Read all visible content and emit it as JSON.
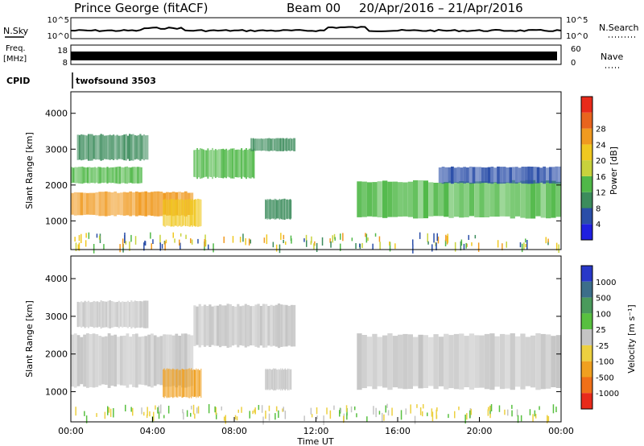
{
  "header": {
    "station": "Prince George (fitACF)",
    "beam": "Beam 00",
    "dates": "20/Apr/2016 – 21/Apr/2016"
  },
  "aux_panels": {
    "nsky_label": "N.Sky",
    "nsky_left_ticks": [
      "10^5",
      "10^0"
    ],
    "nsky_right_ticks": [
      "10^5",
      "10^0"
    ],
    "nsearch_label": "N.Search",
    "freq_label_line1": "Freq.",
    "freq_label_line2": "[MHz]",
    "freq_left_ticks": [
      "18",
      "8"
    ],
    "nave_right_ticks": [
      "60",
      "0"
    ],
    "nave_label": "Nave",
    "cpid_label": "CPID",
    "cpid_text": "twofsound 3503"
  },
  "colorbars": {
    "power": {
      "label": "Power [dB]",
      "ticks": [
        "4",
        "8",
        "12",
        "16",
        "20",
        "24",
        "28"
      ],
      "colors": [
        "#1f1fe0",
        "#2a4ea8",
        "#3c8c5c",
        "#50b848",
        "#c8d23c",
        "#f0c820",
        "#f09a20",
        "#e8641e",
        "#e82a1a"
      ]
    },
    "velocity": {
      "label": "Velocity [m s⁻¹]",
      "ticks": [
        "1000",
        "500",
        "100",
        "25",
        "-25",
        "-100",
        "-500",
        "-1000"
      ],
      "colors": [
        "#2838c8",
        "#3c6e8a",
        "#4a9a5c",
        "#58c040",
        "#c4c4c4",
        "#ecd040",
        "#f0a020",
        "#f07018",
        "#e82a1a"
      ]
    }
  },
  "chart_data": [
    {
      "type": "heatmap",
      "panel": "power",
      "ylabel": "Slant Range [km]",
      "ylim": [
        200,
        4600
      ],
      "y_ticks": [
        "1000",
        "2000",
        "3000",
        "4000"
      ],
      "x_range_hours": [
        0,
        24
      ],
      "grid": false,
      "colorbar_label": "Power [dB]",
      "regions": [
        {
          "t0": 0.0,
          "t1": 6.0,
          "r0": 1150,
          "r1": 1800,
          "power_db": 22
        },
        {
          "t0": 0.0,
          "t1": 3.5,
          "r0": 2050,
          "r1": 2500,
          "power_db": 14
        },
        {
          "t0": 0.3,
          "t1": 3.8,
          "r0": 2700,
          "r1": 3400,
          "power_db": 10
        },
        {
          "t0": 4.5,
          "t1": 6.4,
          "r0": 850,
          "r1": 1600,
          "power_db": 20
        },
        {
          "t0": 6.0,
          "t1": 9.0,
          "r0": 2200,
          "r1": 3000,
          "power_db": 14
        },
        {
          "t0": 8.8,
          "t1": 11.0,
          "r0": 2950,
          "r1": 3300,
          "power_db": 8
        },
        {
          "t0": 9.5,
          "t1": 10.8,
          "r0": 1050,
          "r1": 1600,
          "power_db": 8
        },
        {
          "t0": 14.0,
          "t1": 24.0,
          "r0": 1100,
          "r1": 2100,
          "power_db": 14
        },
        {
          "t0": 18.0,
          "t1": 24.0,
          "r0": 2050,
          "r1": 2500,
          "power_db": 6
        }
      ]
    },
    {
      "type": "heatmap",
      "panel": "velocity",
      "ylabel": "Slant Range [km]",
      "xlabel": "Time UT",
      "ylim": [
        200,
        4600
      ],
      "y_ticks": [
        "1000",
        "2000",
        "3000",
        "4000"
      ],
      "x_ticks": [
        "00:00",
        "04:00",
        "08:00",
        "12:00",
        "16:00",
        "20:00",
        "00:00"
      ],
      "x_range_hours": [
        0,
        24
      ],
      "grid": false,
      "colorbar_label": "Velocity [m s⁻¹]",
      "regions": [
        {
          "t0": 0.0,
          "t1": 6.0,
          "r0": 1150,
          "r1": 2500,
          "velocity_ms": 0
        },
        {
          "t0": 0.3,
          "t1": 3.8,
          "r0": 2700,
          "r1": 3400,
          "velocity_ms": 0
        },
        {
          "t0": 4.5,
          "t1": 6.4,
          "r0": 850,
          "r1": 1600,
          "velocity_ms": -500
        },
        {
          "t0": 6.0,
          "t1": 11.0,
          "r0": 2200,
          "r1": 3300,
          "velocity_ms": 0
        },
        {
          "t0": 9.5,
          "t1": 10.8,
          "r0": 1050,
          "r1": 1600,
          "velocity_ms": 0
        },
        {
          "t0": 14.0,
          "t1": 24.0,
          "r0": 1100,
          "r1": 2500,
          "velocity_ms": 0
        }
      ]
    }
  ]
}
